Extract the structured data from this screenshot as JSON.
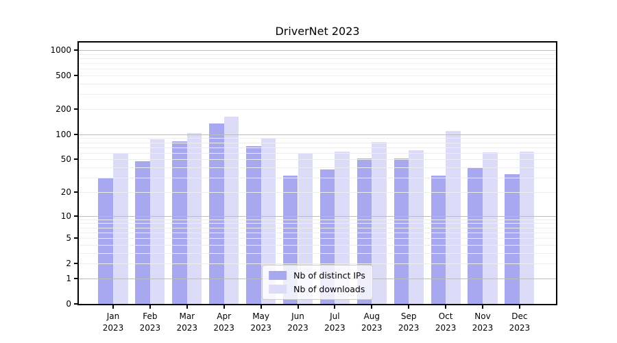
{
  "chart_data": {
    "type": "bar",
    "title": "DriverNet 2023",
    "categories": [
      "Jan 2023",
      "Feb 2023",
      "Mar 2023",
      "Apr 2023",
      "May 2023",
      "Jun 2023",
      "Jul 2023",
      "Aug 2023",
      "Sep 2023",
      "Oct 2023",
      "Nov 2023",
      "Dec 2023"
    ],
    "series": [
      {
        "name": "Nb of distinct IPs",
        "color": "#a8a8f0",
        "values": [
          30,
          48,
          83,
          135,
          72,
          32,
          38,
          51,
          51,
          32,
          40,
          33
        ]
      },
      {
        "name": "Nb of downloads",
        "color": "#dcdcf8",
        "values": [
          60,
          88,
          103,
          163,
          90,
          59,
          62,
          81,
          65,
          110,
          61,
          62
        ]
      }
    ],
    "xlabel": "",
    "ylabel": "",
    "yscale": "log1p",
    "ylim": [
      0,
      1225
    ],
    "yticks": [
      0,
      1,
      2,
      5,
      10,
      20,
      50,
      100,
      200,
      500,
      1000
    ],
    "grid": true,
    "legend_position": "lower center",
    "colors": {
      "major_grid": "#bdbdbd",
      "minor_grid": "#ededed",
      "axis": "#000000",
      "background": "#ffffff"
    }
  }
}
